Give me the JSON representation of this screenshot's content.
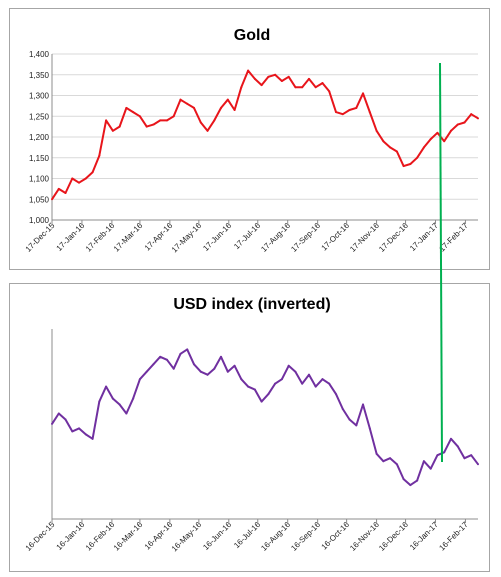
{
  "chart_data": [
    {
      "type": "line",
      "title": "Gold",
      "xlabel": "",
      "ylabel": "",
      "ylim": [
        1000,
        1400
      ],
      "yticks": [
        "1,000",
        "1,050",
        "1,100",
        "1,150",
        "1,200",
        "1,250",
        "1,300",
        "1,350",
        "1,400"
      ],
      "xticks": [
        "17-Dec-15",
        "17-Jan-16",
        "17-Feb-16",
        "17-Mar-16",
        "17-Apr-16",
        "17-May-16",
        "17-Jun-16",
        "17-Jul-16",
        "17-Aug-16",
        "17-Sep-16",
        "17-Oct-16",
        "17-Nov-16",
        "17-Dec-16",
        "17-Jan-17",
        "17-Feb-17"
      ],
      "grid": "horizontal",
      "legend": "none",
      "color": "#e8151b",
      "series": [
        {
          "x": [
            "2015-12-17",
            "2015-12-24",
            "2015-12-31",
            "2016-01-07",
            "2016-01-14",
            "2016-01-21",
            "2016-01-28",
            "2016-02-04",
            "2016-02-11",
            "2016-02-18",
            "2016-02-25",
            "2016-03-03",
            "2016-03-10",
            "2016-03-17",
            "2016-03-24",
            "2016-03-31",
            "2016-04-07",
            "2016-04-14",
            "2016-04-21",
            "2016-04-28",
            "2016-05-05",
            "2016-05-12",
            "2016-05-19",
            "2016-05-26",
            "2016-06-02",
            "2016-06-09",
            "2016-06-16",
            "2016-06-23",
            "2016-06-30",
            "2016-07-07",
            "2016-07-14",
            "2016-07-21",
            "2016-07-28",
            "2016-08-04",
            "2016-08-11",
            "2016-08-18",
            "2016-08-25",
            "2016-09-01",
            "2016-09-08",
            "2016-09-15",
            "2016-09-22",
            "2016-09-29",
            "2016-10-06",
            "2016-10-13",
            "2016-10-20",
            "2016-10-27",
            "2016-11-03",
            "2016-11-10",
            "2016-11-17",
            "2016-11-24",
            "2016-12-01",
            "2016-12-08",
            "2016-12-15",
            "2016-12-22",
            "2016-12-29",
            "2017-01-05",
            "2017-01-12",
            "2017-01-19",
            "2017-01-26",
            "2017-02-02",
            "2017-02-09",
            "2017-02-16",
            "2017-02-23",
            "2017-03-02"
          ],
          "values": [
            1050,
            1075,
            1065,
            1100,
            1090,
            1100,
            1115,
            1155,
            1240,
            1215,
            1225,
            1270,
            1260,
            1250,
            1225,
            1230,
            1240,
            1240,
            1250,
            1290,
            1280,
            1270,
            1235,
            1215,
            1240,
            1270,
            1290,
            1265,
            1320,
            1360,
            1340,
            1325,
            1345,
            1350,
            1335,
            1345,
            1320,
            1320,
            1340,
            1320,
            1330,
            1310,
            1260,
            1255,
            1265,
            1270,
            1305,
            1260,
            1215,
            1190,
            1175,
            1165,
            1130,
            1135,
            1150,
            1175,
            1195,
            1210,
            1190,
            1215,
            1230,
            1235,
            1255,
            1245
          ]
        }
      ]
    },
    {
      "type": "line",
      "title": "USD index (inverted)",
      "xlabel": "",
      "ylabel": "",
      "xticks": [
        "16-Dec-15",
        "16-Jan-16",
        "16-Feb-16",
        "16-Mar-16",
        "16-Apr-16",
        "16-May-16",
        "16-Jun-16",
        "16-Jul-16",
        "16-Aug-16",
        "16-Sep-16",
        "16-Oct-16",
        "16-Nov-16",
        "16-Dec-16",
        "16-Jan-17",
        "16-Feb-17"
      ],
      "yticks_shown": false,
      "grid": "none",
      "legend": "none",
      "color": "#7030a0",
      "series": [
        {
          "x": [
            "2015-12-16",
            "2015-12-23",
            "2015-12-30",
            "2016-01-06",
            "2016-01-13",
            "2016-01-20",
            "2016-01-27",
            "2016-02-03",
            "2016-02-10",
            "2016-02-17",
            "2016-02-24",
            "2016-03-02",
            "2016-03-09",
            "2016-03-16",
            "2016-03-23",
            "2016-03-30",
            "2016-04-06",
            "2016-04-13",
            "2016-04-20",
            "2016-04-27",
            "2016-05-04",
            "2016-05-11",
            "2016-05-18",
            "2016-05-25",
            "2016-06-01",
            "2016-06-08",
            "2016-06-15",
            "2016-06-22",
            "2016-06-29",
            "2016-07-06",
            "2016-07-13",
            "2016-07-20",
            "2016-07-27",
            "2016-08-03",
            "2016-08-10",
            "2016-08-17",
            "2016-08-24",
            "2016-08-31",
            "2016-09-07",
            "2016-09-14",
            "2016-09-21",
            "2016-09-28",
            "2016-10-05",
            "2016-10-12",
            "2016-10-19",
            "2016-10-26",
            "2016-11-02",
            "2016-11-09",
            "2016-11-16",
            "2016-11-23",
            "2016-11-30",
            "2016-12-07",
            "2016-12-14",
            "2016-12-21",
            "2016-12-28",
            "2017-01-04",
            "2017-01-11",
            "2017-01-18",
            "2017-01-25",
            "2017-02-01",
            "2017-02-08",
            "2017-02-15",
            "2017-02-22",
            "2017-03-01"
          ],
          "values": [
            -98.5,
            -97.8,
            -98.2,
            -99.0,
            -98.8,
            -99.2,
            -99.5,
            -97.0,
            -96.0,
            -96.8,
            -97.2,
            -97.8,
            -96.8,
            -95.5,
            -95.0,
            -94.5,
            -94.0,
            -94.2,
            -94.8,
            -93.8,
            -93.5,
            -94.5,
            -95.0,
            -95.2,
            -94.8,
            -94.0,
            -95.0,
            -94.6,
            -95.5,
            -96.0,
            -96.2,
            -97.0,
            -96.5,
            -95.8,
            -95.5,
            -94.6,
            -95.0,
            -95.8,
            -95.2,
            -96.0,
            -95.5,
            -95.8,
            -96.5,
            -97.5,
            -98.2,
            -98.6,
            -97.2,
            -98.8,
            -100.5,
            -101.0,
            -100.8,
            -101.2,
            -102.2,
            -102.6,
            -102.3,
            -101.0,
            -101.5,
            -100.6,
            -100.4,
            -99.5,
            -100.0,
            -100.8,
            -100.6,
            -101.2
          ]
        }
      ]
    }
  ],
  "annotation": {
    "type": "connector-line",
    "color": "#00b050"
  }
}
